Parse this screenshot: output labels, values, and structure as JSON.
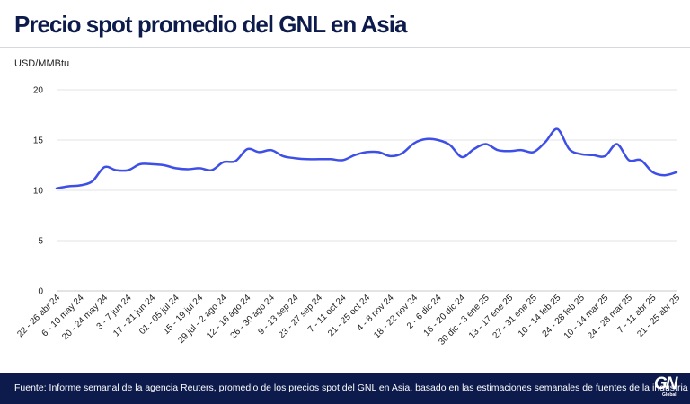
{
  "title": "Precio spot promedio del GNL en Asia",
  "footer": {
    "source": "Fuente: Informe semanal de la agencia Reuters, promedio de los precios spot del GNL en Asia, basado en las estimaciones semanales de fuentes de la industria",
    "logo_main": "GN",
    "logo_sub": "Global"
  },
  "colors": {
    "line": "#3d4fe6",
    "footer_bg": "#0d1b4c",
    "title": "#0d1b4c",
    "grid": "#e3e3e3"
  },
  "chart_data": {
    "type": "line",
    "ylabel": "USD/MMBtu",
    "ylim": [
      0,
      20
    ],
    "yticks": [
      0,
      5,
      10,
      15,
      20
    ],
    "grid": true,
    "x_tick_labels": [
      "22 - 26 abr 24",
      "6 - 10 may 24",
      "20 - 24 may 24",
      "3 - 7 jun 24",
      "17 - 21 jun 24",
      "01 - 05 jul 24",
      "15 - 19 jul 24",
      "29 jul - 2 ago 24",
      "12 - 16 ago 24",
      "26 - 30 ago 24",
      "9 - 13 sep 24",
      "23 - 27 sep 24",
      "7 - 11 oct 24",
      "21 - 25 oct 24",
      "4 - 8 nov 24",
      "18 - 22 nov 24",
      "2 - 6 dic 24",
      "16 - 20 dic 24",
      "30 dic - 3 ene 25",
      "13 - 17 ene 25",
      "27 - 31 ene 25",
      "10 - 14 feb 25",
      "24 - 28 feb 25",
      "10 - 14 mar 25",
      "24 - 28 mar 25",
      "7 - 11 abr 25",
      "21 - 25 abr 25"
    ],
    "values": [
      10.2,
      10.4,
      10.5,
      10.9,
      12.3,
      12.0,
      12.0,
      12.6,
      12.6,
      12.5,
      12.2,
      12.1,
      12.2,
      12.0,
      12.8,
      12.9,
      14.1,
      13.8,
      14.0,
      13.4,
      13.2,
      13.1,
      13.1,
      13.1,
      13.0,
      13.5,
      13.8,
      13.8,
      13.4,
      13.7,
      14.7,
      15.1,
      15.0,
      14.5,
      13.3,
      14.1,
      14.6,
      14.0,
      13.9,
      14.0,
      13.8,
      14.8,
      16.1,
      14.1,
      13.6,
      13.5,
      13.4,
      14.6,
      13.0,
      13.0,
      11.8,
      11.5,
      11.8
    ]
  }
}
